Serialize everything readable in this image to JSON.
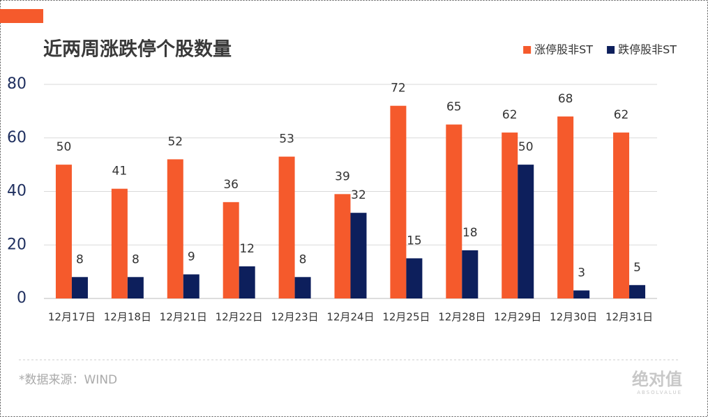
{
  "chart_data": {
    "type": "bar",
    "title": "近两周涨跌停个股数量",
    "categories": [
      "12月17日",
      "12月18日",
      "12月21日",
      "12月22日",
      "12月23日",
      "12月24日",
      "12月25日",
      "12月28日",
      "12月29日",
      "12月30日",
      "12月31日"
    ],
    "series": [
      {
        "name": "涨停股非ST",
        "color": "#f55a2c",
        "values": [
          50,
          41,
          52,
          36,
          53,
          39,
          72,
          65,
          62,
          68,
          62
        ]
      },
      {
        "name": "跌停股非ST",
        "color": "#0d1f5c",
        "values": [
          8,
          8,
          9,
          12,
          8,
          32,
          15,
          18,
          50,
          3,
          5
        ]
      }
    ],
    "ylim": [
      0,
      80
    ],
    "yticks": [
      0,
      20,
      40,
      60,
      80
    ],
    "grid": true,
    "legend": "top-right",
    "source": "*数据来源：WIND",
    "watermark": "绝对值",
    "watermark_sub": "ABSOLVALUE"
  }
}
